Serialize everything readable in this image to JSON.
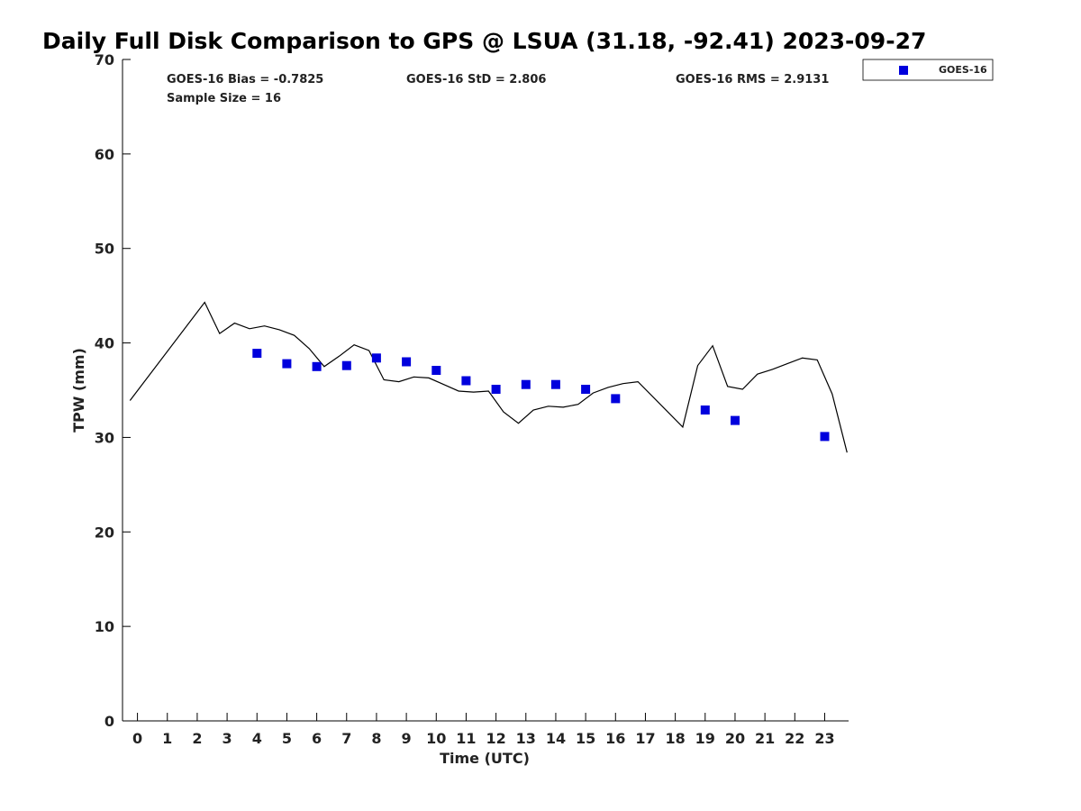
{
  "chart_data": {
    "type": "scatter",
    "title": "Daily Full Disk Comparison to GPS @ LSUA (31.18, -92.41) 2023-09-27",
    "xlabel": "Time (UTC)",
    "ylabel": "TPW (mm)",
    "xlim": [
      -0.5,
      23.8
    ],
    "ylim": [
      0,
      70
    ],
    "xticks": [
      0,
      1,
      2,
      3,
      4,
      5,
      6,
      7,
      8,
      9,
      10,
      11,
      12,
      13,
      14,
      15,
      16,
      17,
      18,
      19,
      20,
      21,
      22,
      23
    ],
    "xtick_labels": [
      "0",
      "1",
      "2",
      "3",
      "4",
      "5",
      "6",
      "7",
      "8",
      "9",
      "10",
      "11",
      "12",
      "13",
      "14",
      "15",
      "16",
      "17",
      "18",
      "19",
      "20",
      "21",
      "22",
      "23"
    ],
    "yticks": [
      0,
      10,
      20,
      30,
      40,
      50,
      60,
      70
    ],
    "ytick_labels": [
      "0",
      "10",
      "20",
      "30",
      "40",
      "50",
      "60",
      "70"
    ],
    "grid": false,
    "legend_position": "outside-top-right",
    "stats": {
      "bias": "GOES-16 Bias = -0.7825",
      "std": "GOES-16 StD = 2.806",
      "rms": "GOES-16 RMS = 2.9131",
      "sample": "Sample Size = 16"
    },
    "series": [
      {
        "name": "GOES-16",
        "style": "marker",
        "marker": "square",
        "color": "#0000dd",
        "x": [
          4,
          5,
          6,
          7,
          8,
          9,
          10,
          11,
          12,
          13,
          14,
          15,
          16,
          19,
          20,
          23
        ],
        "y": [
          38.9,
          37.8,
          37.5,
          37.6,
          38.4,
          38.0,
          37.1,
          36.0,
          35.1,
          35.6,
          35.6,
          35.1,
          34.1,
          32.9,
          31.8,
          30.1
        ]
      },
      {
        "style": "line",
        "color": "#000000",
        "x": [
          -0.25,
          2.25,
          2.75,
          3.25,
          3.75,
          4.25,
          4.75,
          5.25,
          5.75,
          6.25,
          6.75,
          7.25,
          7.75,
          8.25,
          8.75,
          9.25,
          9.75,
          10.25,
          10.75,
          11.25,
          11.75,
          12.25,
          12.75,
          13.25,
          13.75,
          14.25,
          14.75,
          15.25,
          15.75,
          16.25,
          16.75,
          18.25,
          18.75,
          19.25,
          19.75,
          20.25,
          20.75,
          21.25,
          21.75,
          22.25,
          22.75,
          23.25,
          23.75
        ],
        "y": [
          33.9,
          44.3,
          41.0,
          42.1,
          41.5,
          41.8,
          41.4,
          40.8,
          39.4,
          37.5,
          38.6,
          39.8,
          39.2,
          36.1,
          35.9,
          36.4,
          36.3,
          35.6,
          34.9,
          34.8,
          34.9,
          32.7,
          31.5,
          32.9,
          33.3,
          33.2,
          33.5,
          34.7,
          35.3,
          35.7,
          35.9,
          31.1,
          37.6,
          39.7,
          35.4,
          35.1,
          36.7,
          37.2,
          37.8,
          38.4,
          38.2,
          34.6,
          28.4
        ]
      }
    ]
  }
}
